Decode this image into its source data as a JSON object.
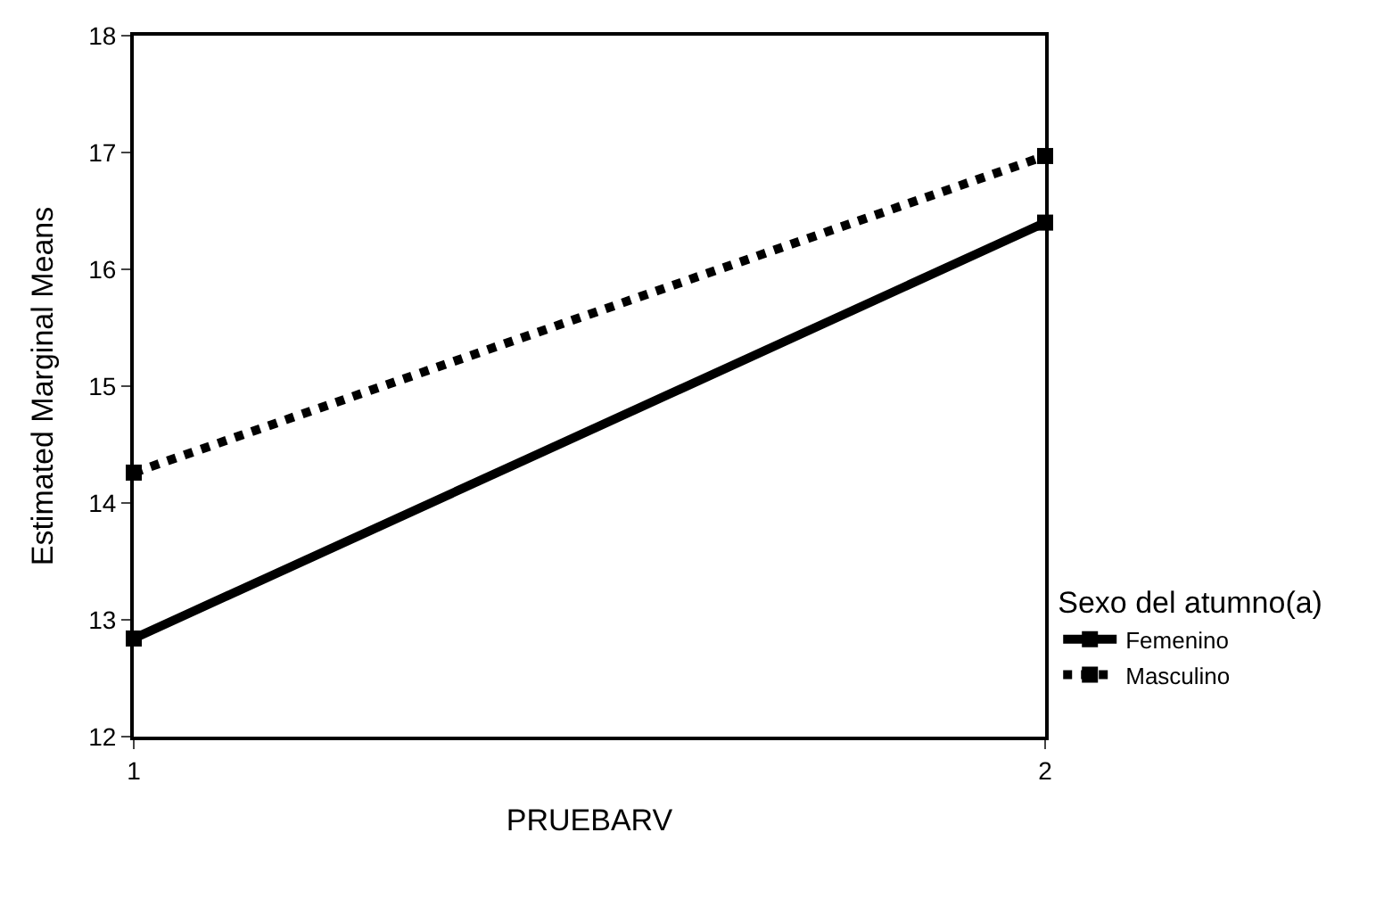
{
  "chart_data": {
    "type": "line",
    "xlabel": "PRUEBARV",
    "ylabel": "Estimated Marginal Means",
    "legend_title": "Sexo del atumno(a)",
    "x": [
      1,
      2
    ],
    "xlim": [
      1,
      2
    ],
    "xticks": [
      1,
      2
    ],
    "ylim": [
      12,
      18
    ],
    "yticks": [
      12,
      13,
      14,
      15,
      16,
      17,
      18
    ],
    "series": [
      {
        "name": "Femenino",
        "color": "#000000",
        "values": [
          12.84,
          16.4
        ],
        "line_style": "solid"
      },
      {
        "name": "Masculino",
        "color": "#000000",
        "values": [
          14.26,
          16.97
        ],
        "line_style": "dotted"
      }
    ],
    "marker": "square",
    "legend": "right",
    "grid": false
  }
}
